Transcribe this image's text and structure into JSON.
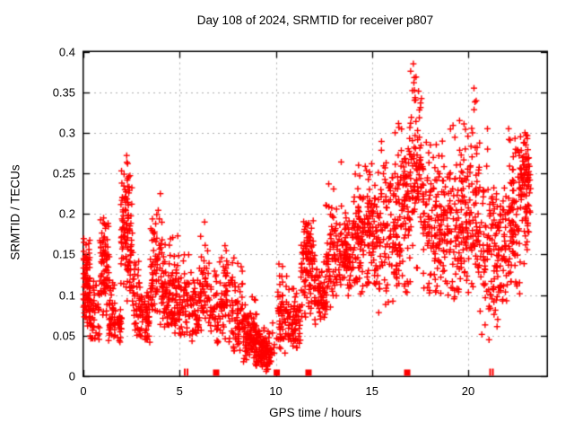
{
  "title": "Day 108 of 2024, SRMTID for receiver p807",
  "x_axis": {
    "label": "GPS time / hours",
    "min": 0,
    "max": 24.1,
    "ticks": [
      {
        "v": 0,
        "label": "0"
      },
      {
        "v": 5,
        "label": "5"
      },
      {
        "v": 10,
        "label": "10"
      },
      {
        "v": 15,
        "label": "15"
      },
      {
        "v": 20,
        "label": "20"
      }
    ]
  },
  "y_axis": {
    "label": "SRMTID / TECUs",
    "min": 0,
    "max": 0.4,
    "ticks": [
      {
        "v": 0,
        "label": "0"
      },
      {
        "v": 0.05,
        "label": "0.05"
      },
      {
        "v": 0.1,
        "label": "0.1"
      },
      {
        "v": 0.15,
        "label": "0.15"
      },
      {
        "v": 0.2,
        "label": "0.2"
      },
      {
        "v": 0.25,
        "label": "0.25"
      },
      {
        "v": 0.3,
        "label": "0.3"
      },
      {
        "v": 0.35,
        "label": "0.35"
      },
      {
        "v": 0.4,
        "label": "0.4"
      }
    ]
  },
  "style": {
    "point_color": "#ff0000",
    "grid_color": "#b0b0b0",
    "axis_color": "#000000",
    "background": "#ffffff"
  },
  "chart_data": {
    "type": "scatter",
    "title": "Day 108 of 2024, SRMTID for receiver p807",
    "xlabel": "GPS time / hours",
    "ylabel": "SRMTID / TECUs",
    "xlim": [
      0,
      24.1
    ],
    "ylim": [
      0,
      0.4
    ],
    "x_ticks": [
      0,
      5,
      10,
      15,
      20
    ],
    "y_ticks": [
      0,
      0.05,
      0.1,
      0.15,
      0.2,
      0.25,
      0.3,
      0.35,
      0.4
    ],
    "grid": true,
    "legend": false,
    "marker": "plus",
    "color": "#ff0000",
    "seed": 108,
    "density_clusters": [
      {
        "t": [
          0.0,
          0.35
        ],
        "y_center": 0.12,
        "y_spread": 0.03,
        "y_range": [
          0.04,
          0.17
        ],
        "n": 85
      },
      {
        "t": [
          0.3,
          0.85
        ],
        "y_center": 0.075,
        "y_spread": 0.022,
        "y_range": [
          0.04,
          0.13
        ],
        "n": 55
      },
      {
        "t": [
          0.85,
          1.35
        ],
        "y_center": 0.14,
        "y_spread": 0.035,
        "y_range": [
          0.07,
          0.195
        ],
        "n": 75
      },
      {
        "t": [
          1.3,
          1.7
        ],
        "y_center": 0.08,
        "y_spread": 0.02,
        "y_range": [
          0.04,
          0.12
        ],
        "n": 45
      },
      {
        "t": [
          1.7,
          2.0
        ],
        "y_center": 0.06,
        "y_spread": 0.015,
        "y_range": [
          0.04,
          0.09
        ],
        "n": 25
      },
      {
        "t": [
          1.95,
          2.55
        ],
        "y_center": 0.175,
        "y_spread": 0.045,
        "y_range": [
          0.08,
          0.27
        ],
        "n": 110
      },
      {
        "t": [
          2.55,
          2.95
        ],
        "y_center": 0.09,
        "y_spread": 0.03,
        "y_range": [
          0.05,
          0.16
        ],
        "n": 40
      },
      {
        "t": [
          2.9,
          3.45
        ],
        "y_center": 0.07,
        "y_spread": 0.02,
        "y_range": [
          0.04,
          0.11
        ],
        "n": 55
      },
      {
        "t": [
          3.45,
          4.1
        ],
        "y_center": 0.13,
        "y_spread": 0.045,
        "y_range": [
          0.06,
          0.225
        ],
        "n": 75
      },
      {
        "t": [
          4.1,
          4.55
        ],
        "y_center": 0.1,
        "y_spread": 0.03,
        "y_range": [
          0.06,
          0.18
        ],
        "n": 55
      },
      {
        "t": [
          4.55,
          5.0
        ],
        "y_center": 0.1,
        "y_spread": 0.035,
        "y_range": [
          0.05,
          0.215
        ],
        "n": 55
      },
      {
        "t": [
          5.0,
          5.5
        ],
        "y_center": 0.085,
        "y_spread": 0.025,
        "y_range": [
          0.05,
          0.16
        ],
        "n": 45
      },
      {
        "t": [
          5.5,
          6.0
        ],
        "y_center": 0.08,
        "y_spread": 0.025,
        "y_range": [
          0.04,
          0.14
        ],
        "n": 50
      },
      {
        "t": [
          6.0,
          6.5
        ],
        "y_center": 0.1,
        "y_spread": 0.035,
        "y_range": [
          0.05,
          0.19
        ],
        "n": 45
      },
      {
        "t": [
          6.5,
          7.05
        ],
        "y_center": 0.08,
        "y_spread": 0.025,
        "y_range": [
          0.04,
          0.14
        ],
        "n": 40
      },
      {
        "t": [
          7.05,
          7.7
        ],
        "y_center": 0.09,
        "y_spread": 0.035,
        "y_range": [
          0.04,
          0.185
        ],
        "n": 55
      },
      {
        "t": [
          7.7,
          8.3
        ],
        "y_center": 0.08,
        "y_spread": 0.03,
        "y_range": [
          0.03,
          0.2
        ],
        "n": 65
      },
      {
        "t": [
          8.3,
          9.0
        ],
        "y_center": 0.05,
        "y_spread": 0.018,
        "y_range": [
          0.015,
          0.1
        ],
        "n": 90
      },
      {
        "t": [
          8.95,
          9.75
        ],
        "y_center": 0.03,
        "y_spread": 0.014,
        "y_range": [
          0.005,
          0.07
        ],
        "n": 110
      },
      {
        "t": [
          9.75,
          10.15
        ],
        "y_center": 0.04,
        "y_spread": 0.02,
        "y_range": [
          0.01,
          0.08
        ],
        "n": 8
      },
      {
        "t": [
          10.1,
          10.6
        ],
        "y_center": 0.075,
        "y_spread": 0.03,
        "y_range": [
          0.025,
          0.15
        ],
        "n": 55
      },
      {
        "t": [
          10.6,
          11.3
        ],
        "y_center": 0.065,
        "y_spread": 0.02,
        "y_range": [
          0.035,
          0.11
        ],
        "n": 70
      },
      {
        "t": [
          11.3,
          12.0
        ],
        "y_center": 0.14,
        "y_spread": 0.033,
        "y_range": [
          0.07,
          0.195
        ],
        "n": 95
      },
      {
        "t": [
          12.0,
          12.6
        ],
        "y_center": 0.095,
        "y_spread": 0.022,
        "y_range": [
          0.06,
          0.15
        ],
        "n": 65
      },
      {
        "t": [
          12.6,
          13.2
        ],
        "y_center": 0.14,
        "y_spread": 0.04,
        "y_range": [
          0.08,
          0.24
        ],
        "n": 70
      },
      {
        "t": [
          13.2,
          14.0
        ],
        "y_center": 0.145,
        "y_spread": 0.03,
        "y_range": [
          0.09,
          0.265
        ],
        "n": 85
      },
      {
        "t": [
          14.0,
          14.6
        ],
        "y_center": 0.16,
        "y_spread": 0.04,
        "y_range": [
          0.1,
          0.262
        ],
        "n": 75
      },
      {
        "t": [
          14.6,
          15.3
        ],
        "y_center": 0.185,
        "y_spread": 0.04,
        "y_range": [
          0.11,
          0.27
        ],
        "n": 85
      },
      {
        "t": [
          15.3,
          16.3
        ],
        "y_center": 0.185,
        "y_spread": 0.05,
        "y_range": [
          0.07,
          0.3
        ],
        "n": 110
      },
      {
        "t": [
          16.3,
          17.0
        ],
        "y_center": 0.21,
        "y_spread": 0.05,
        "y_range": [
          0.1,
          0.33
        ],
        "n": 95
      },
      {
        "t": [
          17.0,
          17.6
        ],
        "y_center": 0.26,
        "y_spread": 0.055,
        "y_range": [
          0.13,
          0.385
        ],
        "n": 80
      },
      {
        "t": [
          17.6,
          18.4
        ],
        "y_center": 0.185,
        "y_spread": 0.04,
        "y_range": [
          0.095,
          0.3
        ],
        "n": 90
      },
      {
        "t": [
          18.4,
          19.2
        ],
        "y_center": 0.19,
        "y_spread": 0.045,
        "y_range": [
          0.1,
          0.31
        ],
        "n": 90
      },
      {
        "t": [
          19.2,
          19.9
        ],
        "y_center": 0.2,
        "y_spread": 0.05,
        "y_range": [
          0.09,
          0.325
        ],
        "n": 85
      },
      {
        "t": [
          19.9,
          20.6
        ],
        "y_center": 0.2,
        "y_spread": 0.055,
        "y_range": [
          0.08,
          0.358
        ],
        "n": 85
      },
      {
        "t": [
          20.6,
          21.4
        ],
        "y_center": 0.15,
        "y_spread": 0.055,
        "y_range": [
          0.04,
          0.3
        ],
        "n": 80
      },
      {
        "t": [
          21.4,
          22.1
        ],
        "y_center": 0.15,
        "y_spread": 0.04,
        "y_range": [
          0.06,
          0.25
        ],
        "n": 75
      },
      {
        "t": [
          22.1,
          22.7
        ],
        "y_center": 0.2,
        "y_spread": 0.05,
        "y_range": [
          0.1,
          0.31
        ],
        "n": 85
      },
      {
        "t": [
          22.7,
          23.25
        ],
        "y_center": 0.235,
        "y_spread": 0.04,
        "y_range": [
          0.13,
          0.3
        ],
        "n": 90
      }
    ],
    "notable_points": [
      {
        "t": 17.15,
        "y": 0.385
      },
      {
        "t": 17.2,
        "y": 0.368
      },
      {
        "t": 17.1,
        "y": 0.352
      },
      {
        "t": 20.3,
        "y": 0.355
      },
      {
        "t": 20.35,
        "y": 0.338
      },
      {
        "t": 2.25,
        "y": 0.272
      },
      {
        "t": 2.3,
        "y": 0.262
      },
      {
        "t": 4.0,
        "y": 0.225
      },
      {
        "t": 1.05,
        "y": 0.195
      },
      {
        "t": 6.3,
        "y": 0.19
      },
      {
        "t": 13.4,
        "y": 0.264
      },
      {
        "t": 14.3,
        "y": 0.26
      },
      {
        "t": 12.75,
        "y": 0.237
      },
      {
        "t": 16.2,
        "y": 0.3
      },
      {
        "t": 19.55,
        "y": 0.315
      },
      {
        "t": 21.0,
        "y": 0.305
      },
      {
        "t": 22.95,
        "y": 0.3
      },
      {
        "t": 23.0,
        "y": 0.285
      },
      {
        "t": 9.5,
        "y": 0.006
      },
      {
        "t": 9.3,
        "y": 0.012
      }
    ],
    "baseline_square_markers_t": [
      6.9,
      10.05,
      11.7,
      16.83
    ],
    "baseline_bar_markers_t": [
      5.27,
      5.41,
      21.14,
      21.28
    ]
  }
}
